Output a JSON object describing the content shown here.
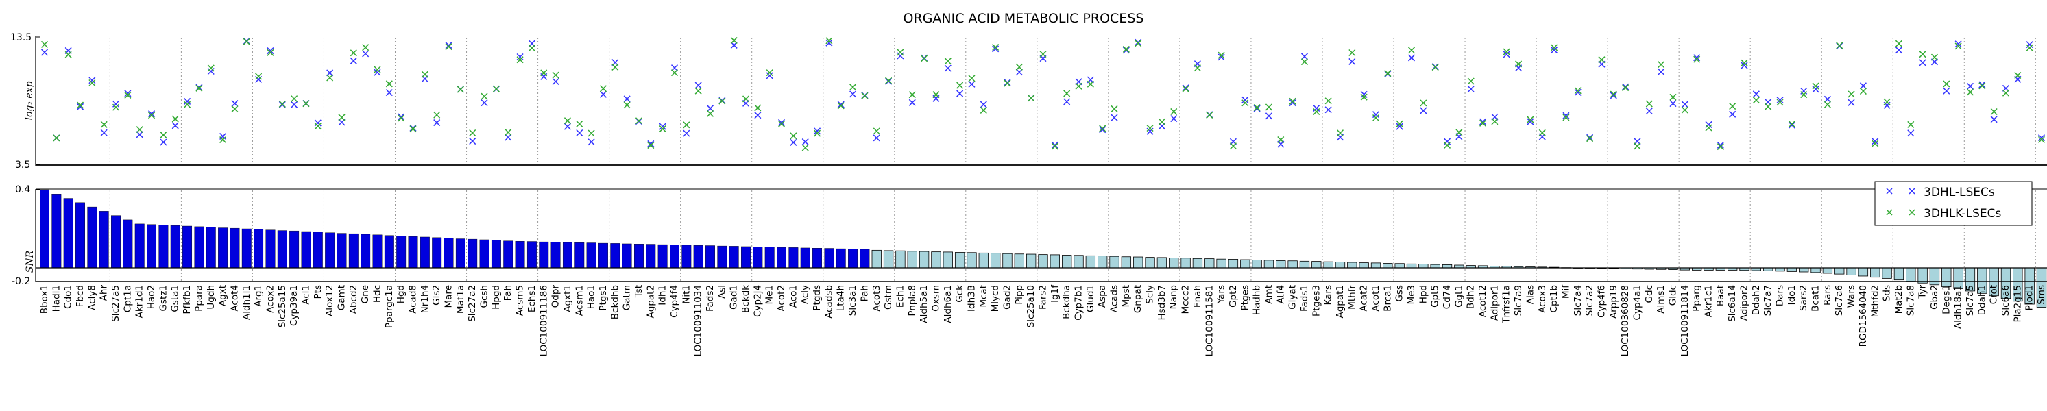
{
  "chart_data": {
    "title": "ORGANIC ACID METABOLIC PROCESS",
    "legend": {
      "position": "right",
      "entries": [
        {
          "name": "3DHL-LSECs",
          "color": "#3333ff",
          "marker": "x"
        },
        {
          "name": "3DHLK-LSECs",
          "color": "#33aa33",
          "marker": "x"
        }
      ]
    },
    "top_panel": {
      "type": "scatter",
      "ylabel": "log₂ exp",
      "ylim": [
        3.5,
        13.5
      ],
      "yticks": [
        "13.5",
        "3.5"
      ],
      "group_separators": "dotted vertical lines every ~6 genes"
    },
    "bottom_panel": {
      "type": "bar",
      "ylabel": "SNR",
      "ylim": [
        -0.2,
        0.4
      ],
      "yticks": [
        "0.4",
        "0",
        "-0.2"
      ],
      "colors": {
        "high": "#0000dd",
        "low": "#a8d4dc"
      }
    },
    "genes": [
      "Bbox1",
      "Hadl1",
      "Cdo1",
      "Fbcd",
      "Acly8",
      "Ahr",
      "Slc27a5",
      "Cpt1a",
      "Akr1d1",
      "Hao2",
      "Gstz1",
      "Gsta1",
      "Pfkfb1",
      "Ppara",
      "Ugdh",
      "Agxt",
      "Acot4",
      "Aldh1l1",
      "Arg1",
      "Acox2",
      "Slc25a15",
      "Cyp39a1",
      "Acl1",
      "Pts",
      "Alox12",
      "Gamt",
      "Abcd2",
      "Gne",
      "Hdc",
      "Ppargc1a",
      "Hgd",
      "Acad8",
      "Nr1h4",
      "Gls2",
      "Mare",
      "Mat1a",
      "Slc27a2",
      "Gcsh",
      "Hpgd",
      "Fah",
      "Acsm5",
      "Echs1",
      "LOC100911186",
      "Qdpr",
      "Agxt1",
      "Acsm1",
      "Hao1",
      "Ptgs1",
      "Bckdhb",
      "Gatm",
      "Tst",
      "Agpat2",
      "Idh1",
      "Cyp4f4",
      "Nit1",
      "LOC100911034",
      "Fads2",
      "Asl",
      "Gad1",
      "Bckdk",
      "Cyp2j4",
      "Me1",
      "Acot2",
      "Aco1",
      "Acly",
      "Ptgds",
      "Acadsb",
      "Lta4h",
      "Slc3a1",
      "Pah",
      "Acot3",
      "Gstm",
      "Ech1",
      "Pnpla8",
      "Aldh5a1",
      "Oxsm",
      "Aldh6a1",
      "Gck",
      "Idh3B",
      "Mcat",
      "Mlycd",
      "Gad2",
      "Pipp",
      "Slc25a10",
      "Fars2",
      "Ig1f",
      "Bckdha",
      "Cyp7b1",
      "Glud1",
      "Aspa",
      "Acads",
      "Mpst",
      "Gnpat",
      "Scly",
      "Hsd3b7",
      "Nanp",
      "Mccc2",
      "Fnah",
      "LOC100911581",
      "Yars",
      "Gpt2",
      "Ptges",
      "Hadhb",
      "Amt",
      "Atf4",
      "Glyat",
      "Fads1",
      "Ptges3",
      "Kars",
      "Agpat1",
      "Mthfr",
      "Acat2",
      "Acot1",
      "Brca1",
      "Gss",
      "Me3",
      "Hpd",
      "Gpt5",
      "Cd74",
      "Ggt1",
      "Bdh2",
      "Acot12",
      "Adipor1",
      "Tnfrsf1a",
      "Slc7a9",
      "Alas",
      "Acox3",
      "Cpt1b",
      "Mif",
      "Slc7a4",
      "Slc7a2",
      "Cyp4f6",
      "Arpp19",
      "LOC100360828",
      "Cyp4a1",
      "Gdc",
      "Alms1",
      "Gldc",
      "LOC100911814",
      "Pparg",
      "Akr1c1",
      "Baat",
      "Slc6a14",
      "Adipor2",
      "Ddah2",
      "Slc7a7",
      "Dars",
      "Ido1",
      "Sars2",
      "Bcat1",
      "Rars",
      "Slc7a6",
      "Wars",
      "RGD1564040",
      "Mthfd2",
      "Sds",
      "Mat2b",
      "Slc7a8",
      "Tyr",
      "Gba2",
      "Degs1",
      "Aldh18a1",
      "Slc7a5",
      "Ddah1",
      "Crot",
      "Slc6a6",
      "Pla2g15",
      "Plod1",
      "Sms"
    ]
  }
}
